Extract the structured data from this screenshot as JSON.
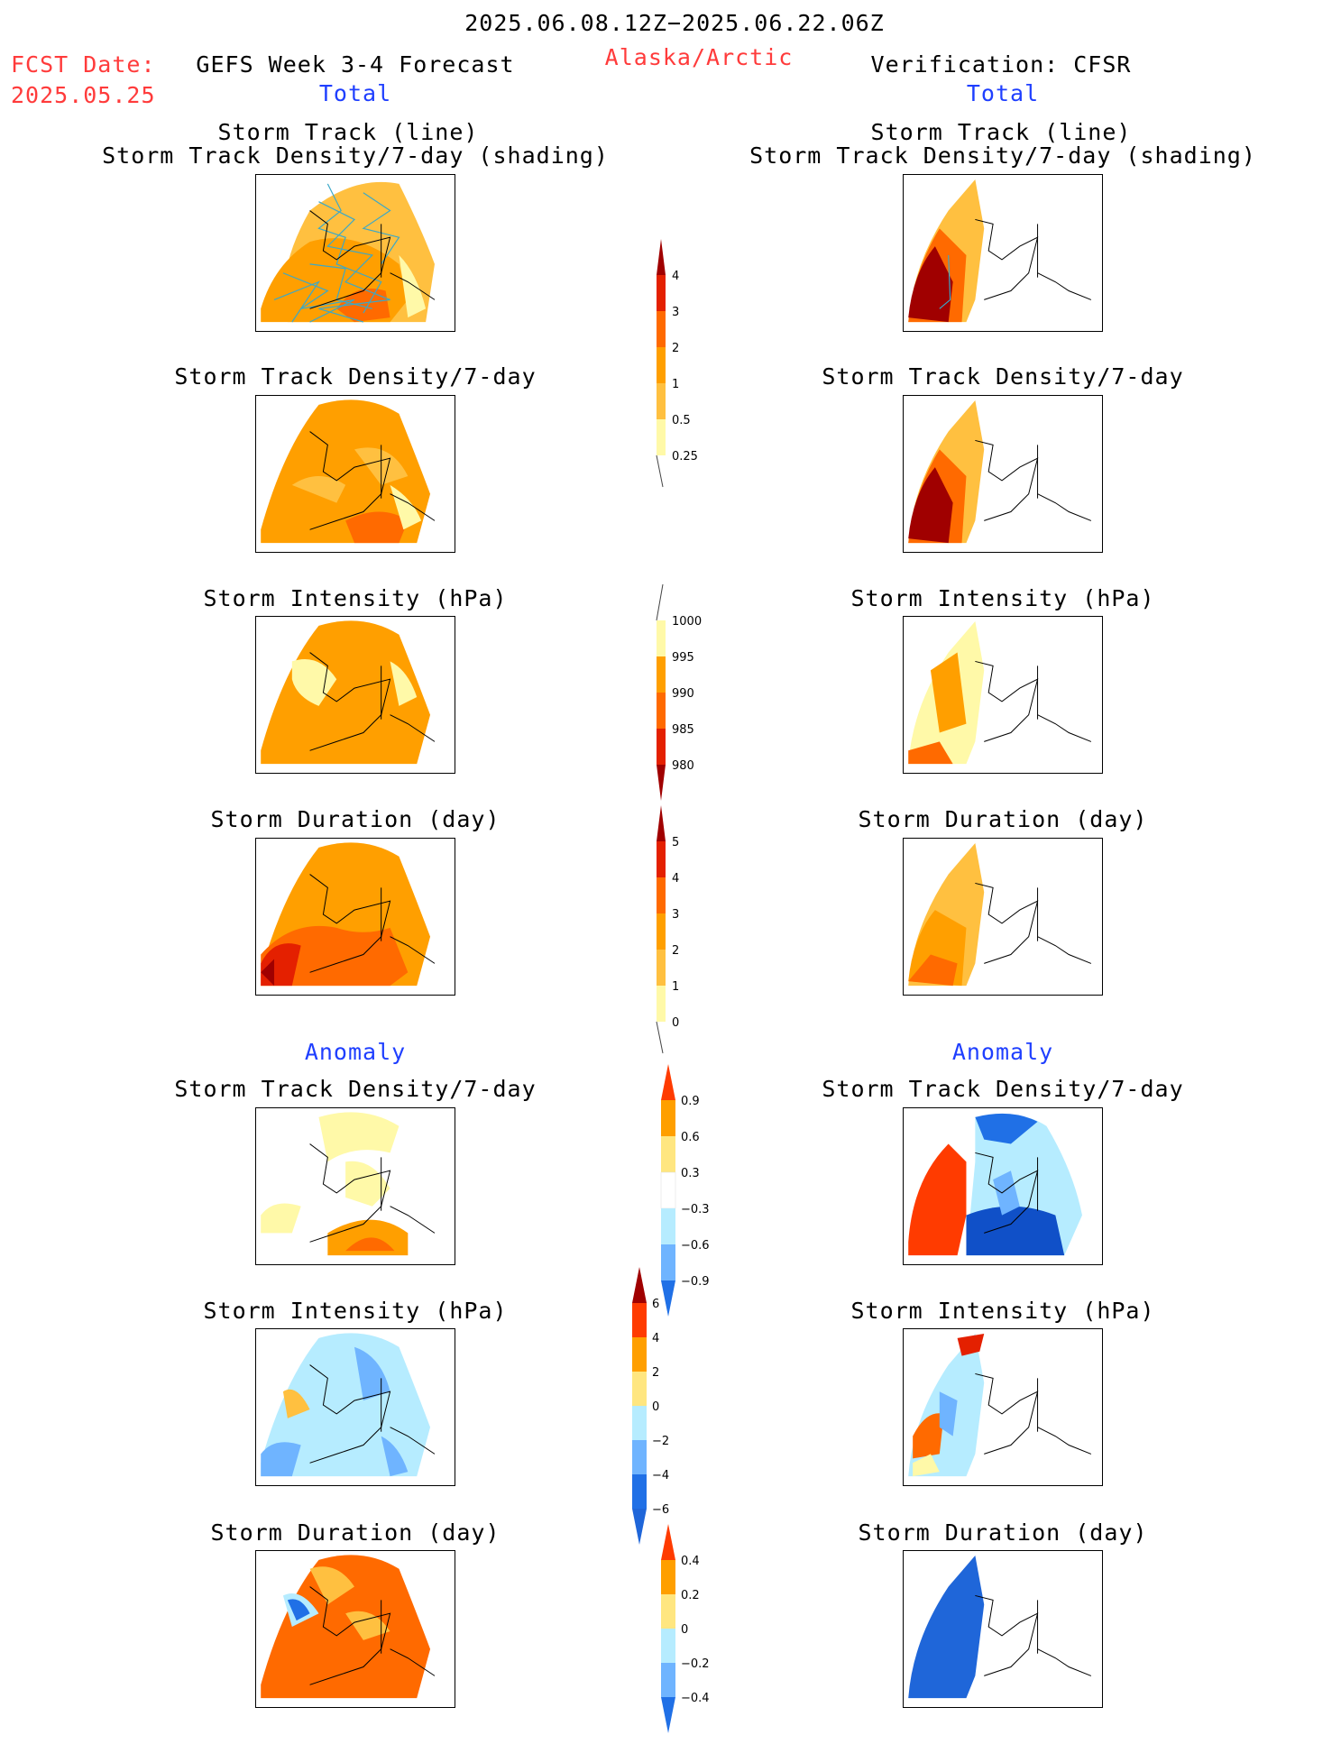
{
  "header": {
    "date_range": "2025.06.08.12Z−2025.06.22.06Z",
    "fcst_label": "FCST Date:",
    "fcst_date": "2025.05.25",
    "left_title": "GEFS Week 3-4 Forecast",
    "region": "Alaska/Arctic",
    "right_title": "Verification: CFSR",
    "total_left": "Total",
    "total_right": "Total",
    "anomaly_left": "Anomaly",
    "anomaly_right": "Anomaly"
  },
  "panels": {
    "track_line": "Storm Track (line)",
    "track_shading": "Storm Track Density/7-day (shading)",
    "track_density": "Storm Track Density/7-day",
    "intensity": "Storm Intensity (hPa)",
    "duration": "Storm Duration (day)"
  },
  "colorbars": {
    "density_total": [
      "4",
      "3",
      "2",
      "1",
      "0.5",
      "0.25"
    ],
    "intensity_total": [
      "1000",
      "995",
      "990",
      "985",
      "980"
    ],
    "duration_total": [
      "5",
      "4",
      "3",
      "2",
      "1",
      "0"
    ],
    "density_anom": [
      "0.9",
      "0.6",
      "0.3",
      "−0.3",
      "−0.6",
      "−0.9"
    ],
    "intensity_anom": [
      "6",
      "4",
      "2",
      "0",
      "−2",
      "−4",
      "−6"
    ],
    "duration_anom": [
      "0.4",
      "0.2",
      "0",
      "−0.2",
      "−0.4"
    ]
  },
  "palette": {
    "pale_yellow": "#fff9a8",
    "light_orange": "#ffc040",
    "orange": "#ff9f00",
    "dark_orange": "#ff6a00",
    "red": "#e42000",
    "dark_red": "#a00000",
    "light_blue": "#b6ecff",
    "mid_blue": "#6fb4ff",
    "blue": "#2070e6",
    "deep_blue": "#1050c8"
  }
}
